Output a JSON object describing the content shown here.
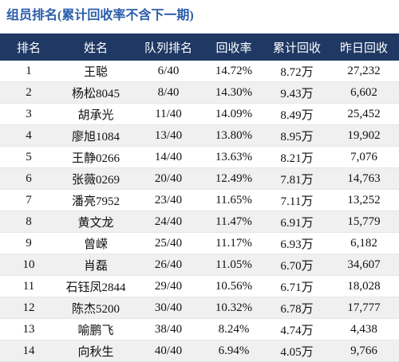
{
  "header": {
    "title": "组员排名(累计回收率不含下一期)"
  },
  "table": {
    "columns": [
      "排名",
      "姓名",
      "队列排名",
      "回收率",
      "累计回收",
      "昨日回收"
    ],
    "rows": [
      [
        "1",
        "王聪",
        "6/40",
        "14.72%",
        "8.72万",
        "27,232"
      ],
      [
        "2",
        "杨松8045",
        "8/40",
        "14.30%",
        "9.43万",
        "6,602"
      ],
      [
        "3",
        "胡承光",
        "11/40",
        "14.09%",
        "8.49万",
        "25,452"
      ],
      [
        "4",
        "廖旭1084",
        "13/40",
        "13.80%",
        "8.95万",
        "19,902"
      ],
      [
        "5",
        "王静0266",
        "14/40",
        "13.63%",
        "8.21万",
        "7,076"
      ],
      [
        "6",
        "张薇0269",
        "20/40",
        "12.49%",
        "7.81万",
        "14,763"
      ],
      [
        "7",
        "潘亮7952",
        "23/40",
        "11.65%",
        "7.11万",
        "13,252"
      ],
      [
        "8",
        "黄文龙",
        "24/40",
        "11.47%",
        "6.91万",
        "15,779"
      ],
      [
        "9",
        "曾嵘",
        "25/40",
        "11.17%",
        "6.93万",
        "6,182"
      ],
      [
        "10",
        "肖磊",
        "26/40",
        "11.05%",
        "6.70万",
        "34,607"
      ],
      [
        "11",
        "石钰凤2844",
        "29/40",
        "10.56%",
        "6.71万",
        "18,028"
      ],
      [
        "12",
        "陈杰5200",
        "30/40",
        "10.32%",
        "6.78万",
        "17,777"
      ],
      [
        "13",
        "喻鹏飞",
        "38/40",
        "8.24%",
        "4.74万",
        "4,438"
      ],
      [
        "14",
        "向秋生",
        "40/40",
        "6.94%",
        "4.05万",
        "9,766"
      ]
    ]
  }
}
